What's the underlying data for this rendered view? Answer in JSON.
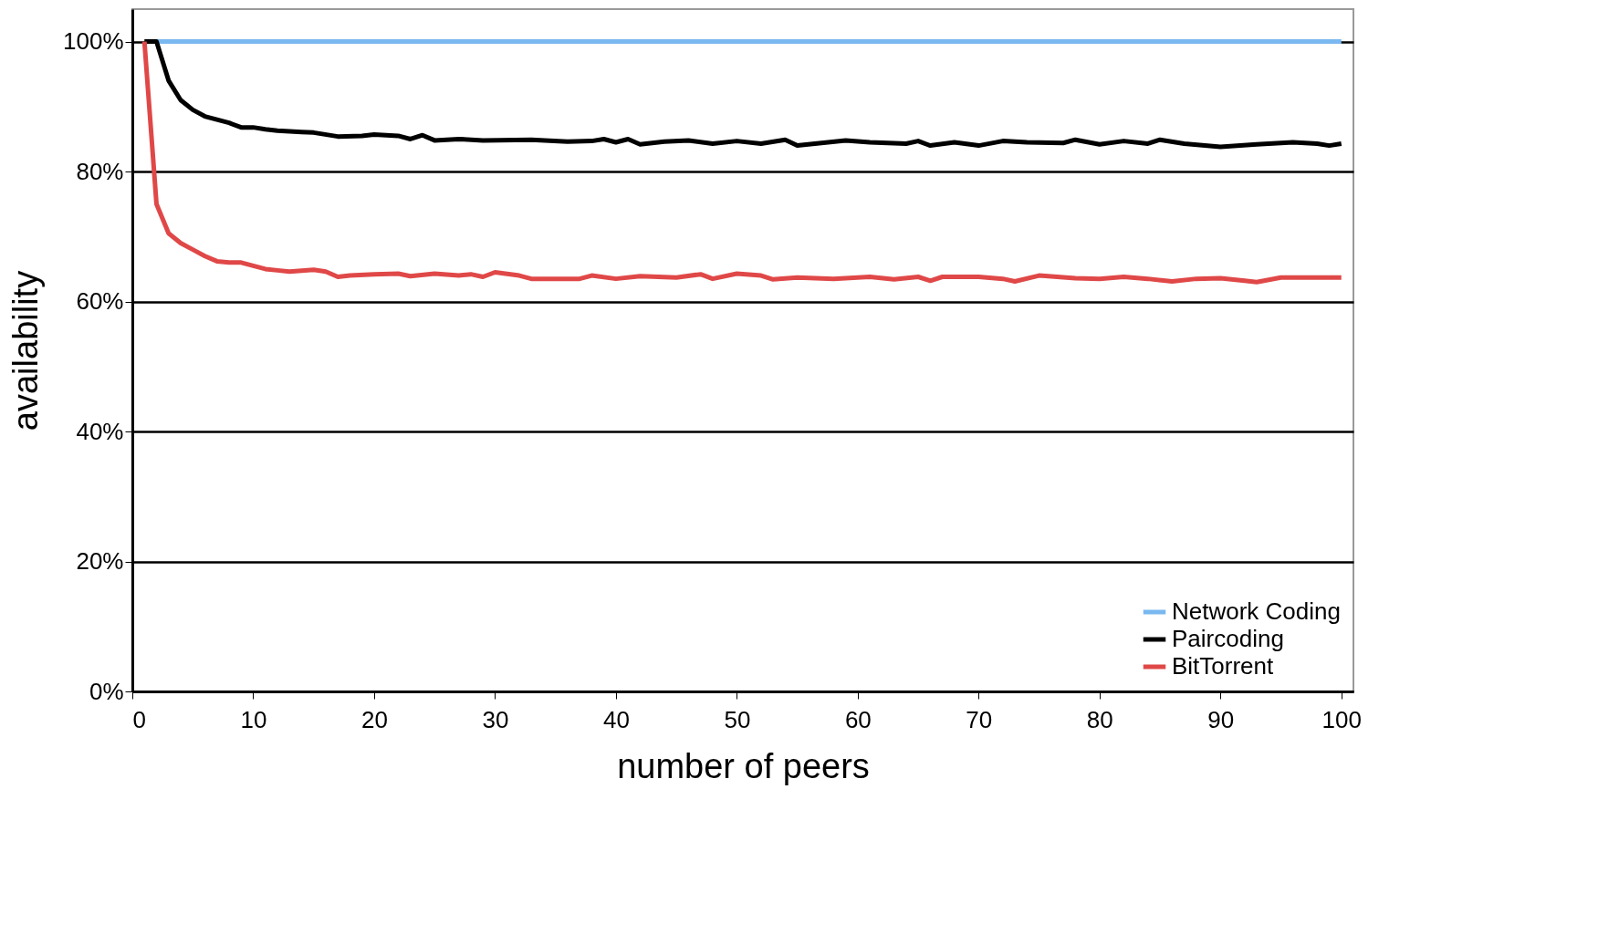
{
  "chart_data": {
    "type": "line",
    "xlabel": "number of peers",
    "ylabel": "availability",
    "xlim": [
      0,
      101
    ],
    "xticks": [
      0,
      10,
      20,
      30,
      40,
      50,
      60,
      70,
      80,
      90,
      100
    ],
    "ylim": [
      0,
      105
    ],
    "yticks": [
      {
        "value": 0,
        "label": "0%"
      },
      {
        "value": 20,
        "label": "20%"
      },
      {
        "value": 40,
        "label": "40%"
      },
      {
        "value": 60,
        "label": "60%"
      },
      {
        "value": 80,
        "label": "80%"
      },
      {
        "value": 100,
        "label": "100%"
      }
    ],
    "grid": "y",
    "legend": "bottom right",
    "line_style": "solid",
    "marker": "none",
    "series": [
      {
        "name": "Network Coding",
        "color": "#7ab8f0",
        "x": [
          2,
          10,
          20,
          30,
          40,
          50,
          60,
          70,
          80,
          90,
          100
        ],
        "values": [
          100,
          100,
          100,
          100,
          100,
          100,
          100,
          100,
          100,
          100,
          100
        ]
      },
      {
        "name": "Paircoding",
        "color": "#000000",
        "x": [
          1,
          2,
          3,
          4,
          5,
          6,
          7,
          8,
          9,
          10,
          11,
          12,
          14,
          15,
          17,
          19,
          20,
          22,
          23,
          24,
          25,
          27,
          29,
          33,
          36,
          38,
          39,
          40,
          41,
          42,
          44,
          46,
          48,
          50,
          52,
          54,
          55,
          57,
          59,
          61,
          64,
          65,
          66,
          68,
          70,
          72,
          74,
          77,
          78,
          80,
          82,
          84,
          85,
          87,
          90,
          93,
          96,
          98,
          99,
          100
        ],
        "values": [
          100,
          100,
          94,
          91,
          89.5,
          88.5,
          88,
          87.5,
          86.8,
          86.8,
          86.5,
          86.3,
          86.1,
          86,
          85.4,
          85.5,
          85.7,
          85.5,
          85,
          85.6,
          84.8,
          85,
          84.8,
          84.9,
          84.6,
          84.7,
          85,
          84.5,
          85,
          84.2,
          84.6,
          84.8,
          84.3,
          84.7,
          84.3,
          84.9,
          84,
          84.4,
          84.8,
          84.5,
          84.3,
          84.7,
          84,
          84.5,
          84,
          84.7,
          84.5,
          84.4,
          84.9,
          84.2,
          84.7,
          84.3,
          84.9,
          84.3,
          83.8,
          84.2,
          84.5,
          84.3,
          84,
          84.3
        ]
      },
      {
        "name": "BitTorrent",
        "color": "#e04848",
        "x": [
          1,
          2,
          3,
          4,
          5,
          6,
          7,
          8,
          9,
          10,
          11,
          12,
          13,
          15,
          16,
          17,
          18,
          20,
          22,
          23,
          25,
          27,
          28,
          29,
          30,
          32,
          33,
          35,
          37,
          38,
          40,
          42,
          45,
          47,
          48,
          50,
          52,
          53,
          55,
          58,
          61,
          63,
          65,
          66,
          67,
          70,
          72,
          73,
          75,
          78,
          80,
          82,
          84,
          86,
          88,
          90,
          92,
          93,
          95,
          97,
          100
        ],
        "values": [
          100,
          75,
          70.5,
          69,
          68,
          67,
          66.2,
          66,
          66,
          65.5,
          65,
          64.8,
          64.6,
          64.9,
          64.6,
          63.8,
          64,
          64.2,
          64.3,
          63.9,
          64.3,
          64,
          64.2,
          63.8,
          64.5,
          64,
          63.5,
          63.5,
          63.5,
          64,
          63.5,
          63.9,
          63.7,
          64.2,
          63.5,
          64.3,
          64,
          63.4,
          63.7,
          63.5,
          63.8,
          63.4,
          63.8,
          63.2,
          63.8,
          63.8,
          63.5,
          63.1,
          64,
          63.6,
          63.5,
          63.8,
          63.5,
          63.1,
          63.5,
          63.6,
          63.2,
          63,
          63.7,
          63.7,
          63.7
        ]
      }
    ]
  }
}
